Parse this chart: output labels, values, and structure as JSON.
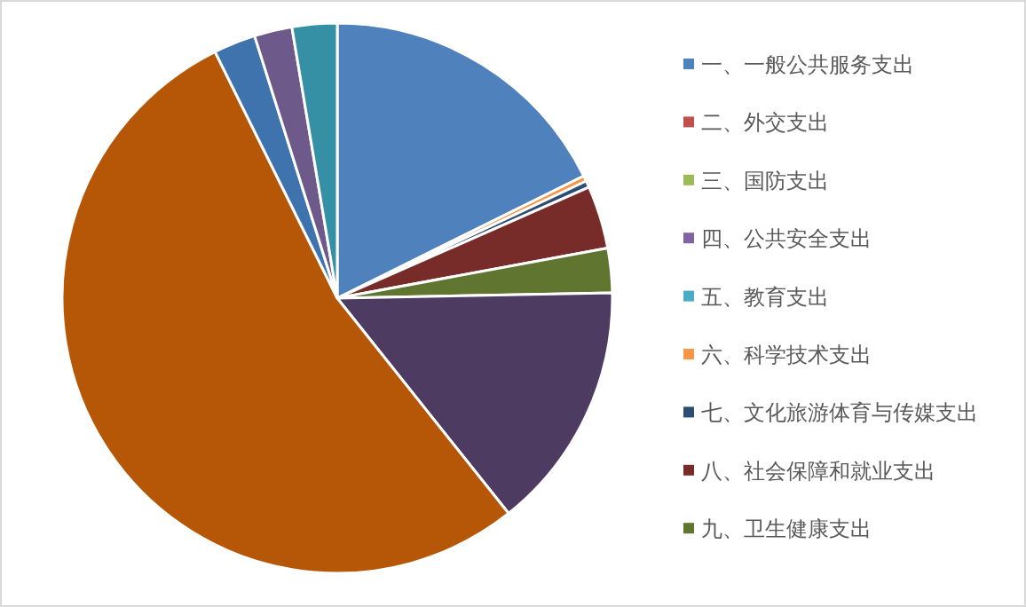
{
  "chart_data": {
    "type": "pie",
    "legend": "right",
    "categories": [
      "一、一般公共服务支出",
      "二、外交支出",
      "三、国防支出",
      "四、公共安全支出",
      "五、教育支出",
      "六、科学技术支出",
      "七、文化旅游体育与传媒支出",
      "八、社会保障和就业支出",
      "九、卫生健康支出",
      null,
      null,
      null,
      null,
      null
    ],
    "values": [
      17.67,
      null,
      null,
      null,
      null,
      0.33,
      0.39,
      3.69,
      2.61,
      14.61,
      53.37,
      2.47,
      2.22,
      2.64
    ],
    "colors": [
      "#4f81bd",
      "#c0504d",
      "#9bbb59",
      "#8064a2",
      "#4bacc6",
      "#f79646",
      "#2c4d75",
      "#772c2a",
      "#5f7530",
      "#4d3b62",
      "#b65708",
      "#3f73ad",
      "#6e5a8a",
      "#3590a5"
    ]
  }
}
